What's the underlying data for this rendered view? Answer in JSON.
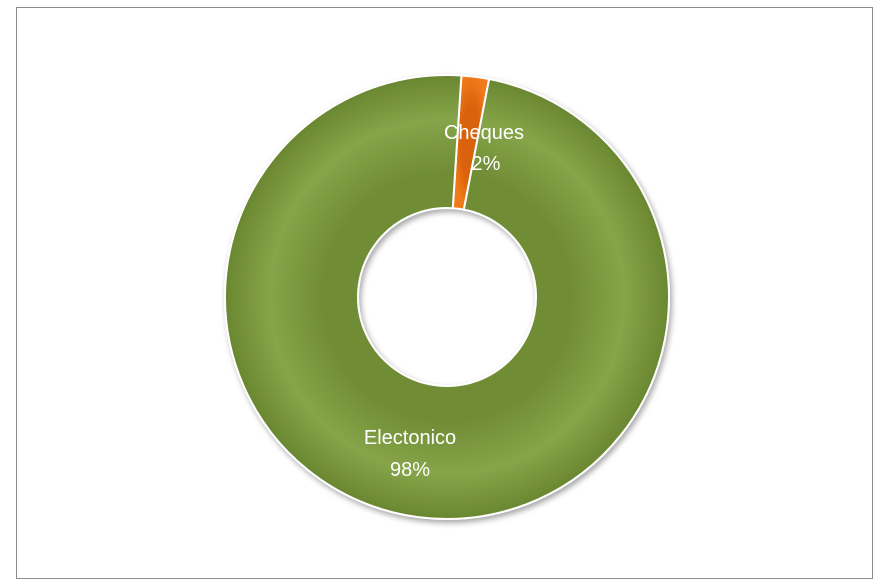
{
  "chart_data": {
    "type": "pie",
    "variant": "donut",
    "slices": [
      {
        "label": "Electonico",
        "value": 98,
        "percent_label": "98%",
        "color": "#7f9d42"
      },
      {
        "label": "Cheques",
        "value": 2,
        "percent_label": "2%",
        "color": "#e36c0a"
      }
    ],
    "title": "",
    "legend": "none"
  }
}
